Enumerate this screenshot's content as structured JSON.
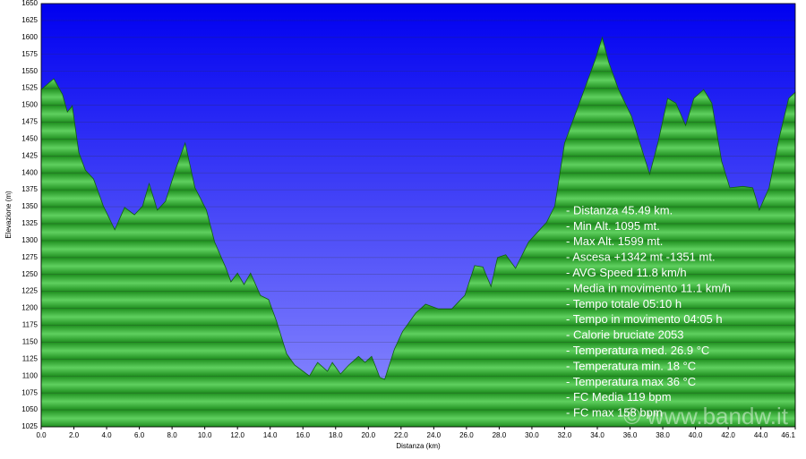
{
  "chart_data": {
    "type": "area",
    "xlabel": "Distanza  (km)",
    "ylabel": "Elevazione (m)",
    "color": "#2ea82e",
    "background_color": "#2020ff",
    "grid": true,
    "xlim": [
      0,
      46.1
    ],
    "ylim": [
      1025,
      1650
    ],
    "xticks": [
      {
        "value": 0,
        "label": "0.0"
      },
      {
        "value": 2,
        "label": "2.0"
      },
      {
        "value": 4,
        "label": "4.0"
      },
      {
        "value": 6,
        "label": "6.0"
      },
      {
        "value": 8,
        "label": "8.0"
      },
      {
        "value": 10,
        "label": "10.0"
      },
      {
        "value": 12,
        "label": "12.0"
      },
      {
        "value": 14,
        "label": "14.0"
      },
      {
        "value": 16,
        "label": "16.0"
      },
      {
        "value": 18,
        "label": "18.0"
      },
      {
        "value": 20,
        "label": "20.0"
      },
      {
        "value": 22,
        "label": "22.0"
      },
      {
        "value": 24,
        "label": "24.0"
      },
      {
        "value": 26,
        "label": "26.0"
      },
      {
        "value": 28,
        "label": "28.0"
      },
      {
        "value": 30,
        "label": "30.0"
      },
      {
        "value": 32,
        "label": "32.0"
      },
      {
        "value": 34,
        "label": "34.0"
      },
      {
        "value": 36,
        "label": "36.0"
      },
      {
        "value": 38,
        "label": "38.0"
      },
      {
        "value": 40,
        "label": "40.0"
      },
      {
        "value": 42,
        "label": "42.0"
      },
      {
        "value": 44,
        "label": "44.0"
      },
      {
        "value": 46.1,
        "label": "46.1"
      }
    ],
    "yticks": [
      1025,
      1050,
      1075,
      1100,
      1125,
      1150,
      1175,
      1200,
      1225,
      1250,
      1275,
      1300,
      1325,
      1350,
      1375,
      1400,
      1425,
      1450,
      1475,
      1500,
      1525,
      1550,
      1575,
      1600,
      1625,
      1650
    ],
    "x": [
      0,
      0.77,
      1.3,
      1.6,
      1.9,
      2.3,
      2.7,
      3.2,
      3.8,
      4.5,
      5.1,
      5.7,
      6.2,
      6.6,
      7.1,
      7.6,
      8.2,
      8.8,
      9.4,
      10.1,
      10.6,
      11.3,
      11.6,
      12.0,
      12.4,
      12.8,
      13.4,
      13.9,
      14.4,
      15.0,
      15.5,
      16.4,
      16.9,
      17.5,
      17.8,
      18.3,
      18.8,
      19.4,
      19.8,
      20.2,
      20.7,
      21.0,
      21.6,
      22.1,
      22.9,
      23.5,
      24.3,
      25.1,
      25.9,
      26.5,
      27.0,
      27.5,
      27.9,
      28.4,
      29.0,
      29.8,
      30.9,
      31.4,
      32.0,
      33.1,
      33.9,
      34.3,
      34.7,
      35.3,
      36.1,
      36.6,
      37.2,
      37.7,
      38.3,
      38.8,
      39.4,
      39.9,
      40.5,
      41.0,
      41.6,
      42.1,
      42.9,
      43.5,
      43.9,
      44.5,
      45.1,
      45.7,
      46.1
    ],
    "values": [
      1523,
      1539,
      1516,
      1490,
      1499,
      1430,
      1404,
      1391,
      1351,
      1316,
      1349,
      1338,
      1351,
      1384,
      1345,
      1358,
      1404,
      1444,
      1378,
      1345,
      1298,
      1259,
      1239,
      1252,
      1235,
      1252,
      1219,
      1213,
      1180,
      1133,
      1116,
      1100,
      1120,
      1107,
      1120,
      1103,
      1116,
      1129,
      1120,
      1129,
      1098,
      1095,
      1140,
      1166,
      1193,
      1206,
      1199,
      1199,
      1219,
      1263,
      1261,
      1232,
      1275,
      1279,
      1259,
      1298,
      1327,
      1351,
      1444,
      1516,
      1569,
      1600,
      1563,
      1523,
      1483,
      1444,
      1398,
      1444,
      1510,
      1503,
      1470,
      1510,
      1523,
      1503,
      1417,
      1378,
      1380,
      1378,
      1345,
      1378,
      1450,
      1510,
      1519
    ],
    "annotations": [
      "- Distanza 45.49 km.",
      "- Min Alt. 1095 mt.",
      "- Max Alt. 1599 mt.",
      "- Ascesa +1342 mt -1351 mt.",
      "- AVG Speed 11.8 km/h",
      "- Media in movimento 11.1 km/h",
      "- Tempo totale 05:10 h",
      "- Tempo in movimento 04:05 h",
      "- Calorie bruciate 2053",
      "- Temperatura med. 26.9 °C",
      "- Temperatura min. 18 °C",
      "- Temperatura max 36 °C",
      "- FC Media 119 bpm",
      "- FC max 158 bpm"
    ],
    "watermark": "© www.bandw.it"
  }
}
